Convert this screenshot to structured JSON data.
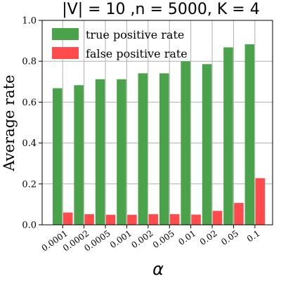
{
  "chart_data": {
    "type": "bar",
    "title": "|V| = 10 ,n = 5000, K = 4",
    "xlabel": "α",
    "ylabel": "Average rate",
    "ylim": [
      0,
      1.0
    ],
    "yticks": [
      0.0,
      0.2,
      0.4,
      0.6,
      0.8,
      1.0
    ],
    "ytick_labels": [
      "0.0",
      "0.2",
      "0.4",
      "0.6",
      "0.8",
      "1.0"
    ],
    "grid": true,
    "legend_position": "top-left",
    "categories": [
      "0.0001",
      "0.0002",
      "0.0005",
      "0.001",
      "0.002",
      "0.005",
      "0.01",
      "0.02",
      "0.05",
      "0.1"
    ],
    "series": [
      {
        "name": "true positive rate",
        "color": "#4aa24a",
        "values": [
          0.668,
          0.683,
          0.712,
          0.712,
          0.741,
          0.741,
          0.8,
          0.786,
          0.868,
          0.883
        ]
      },
      {
        "name": "false positive rate",
        "color": "#ff4b4b",
        "values": [
          0.06,
          0.052,
          0.049,
          0.049,
          0.052,
          0.052,
          0.05,
          0.068,
          0.107,
          0.228
        ]
      }
    ]
  }
}
